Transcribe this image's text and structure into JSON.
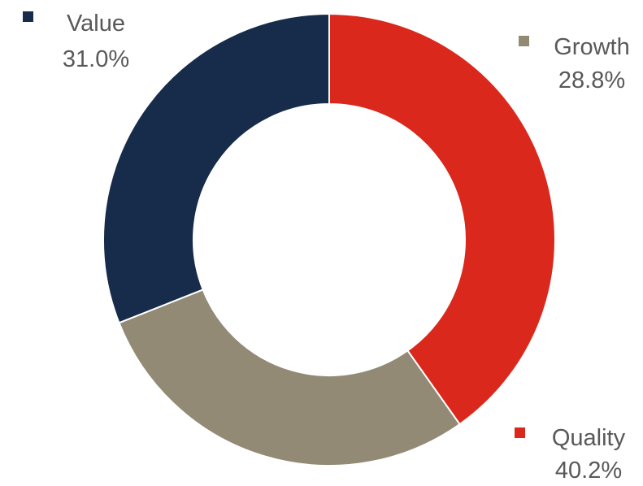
{
  "chart_data": {
    "type": "pie",
    "variant": "donut",
    "title": "",
    "categories": [
      "Value",
      "Growth",
      "Quality"
    ],
    "values": [
      31.0,
      28.8,
      40.2
    ],
    "value_labels": [
      "31.0%",
      "28.8%",
      "40.2%"
    ],
    "colors": [
      "#172B4A",
      "#928A75",
      "#DA291C"
    ],
    "legend": "inline-labels",
    "start_angle": "12 o'clock",
    "direction": "counter-clockwise"
  }
}
